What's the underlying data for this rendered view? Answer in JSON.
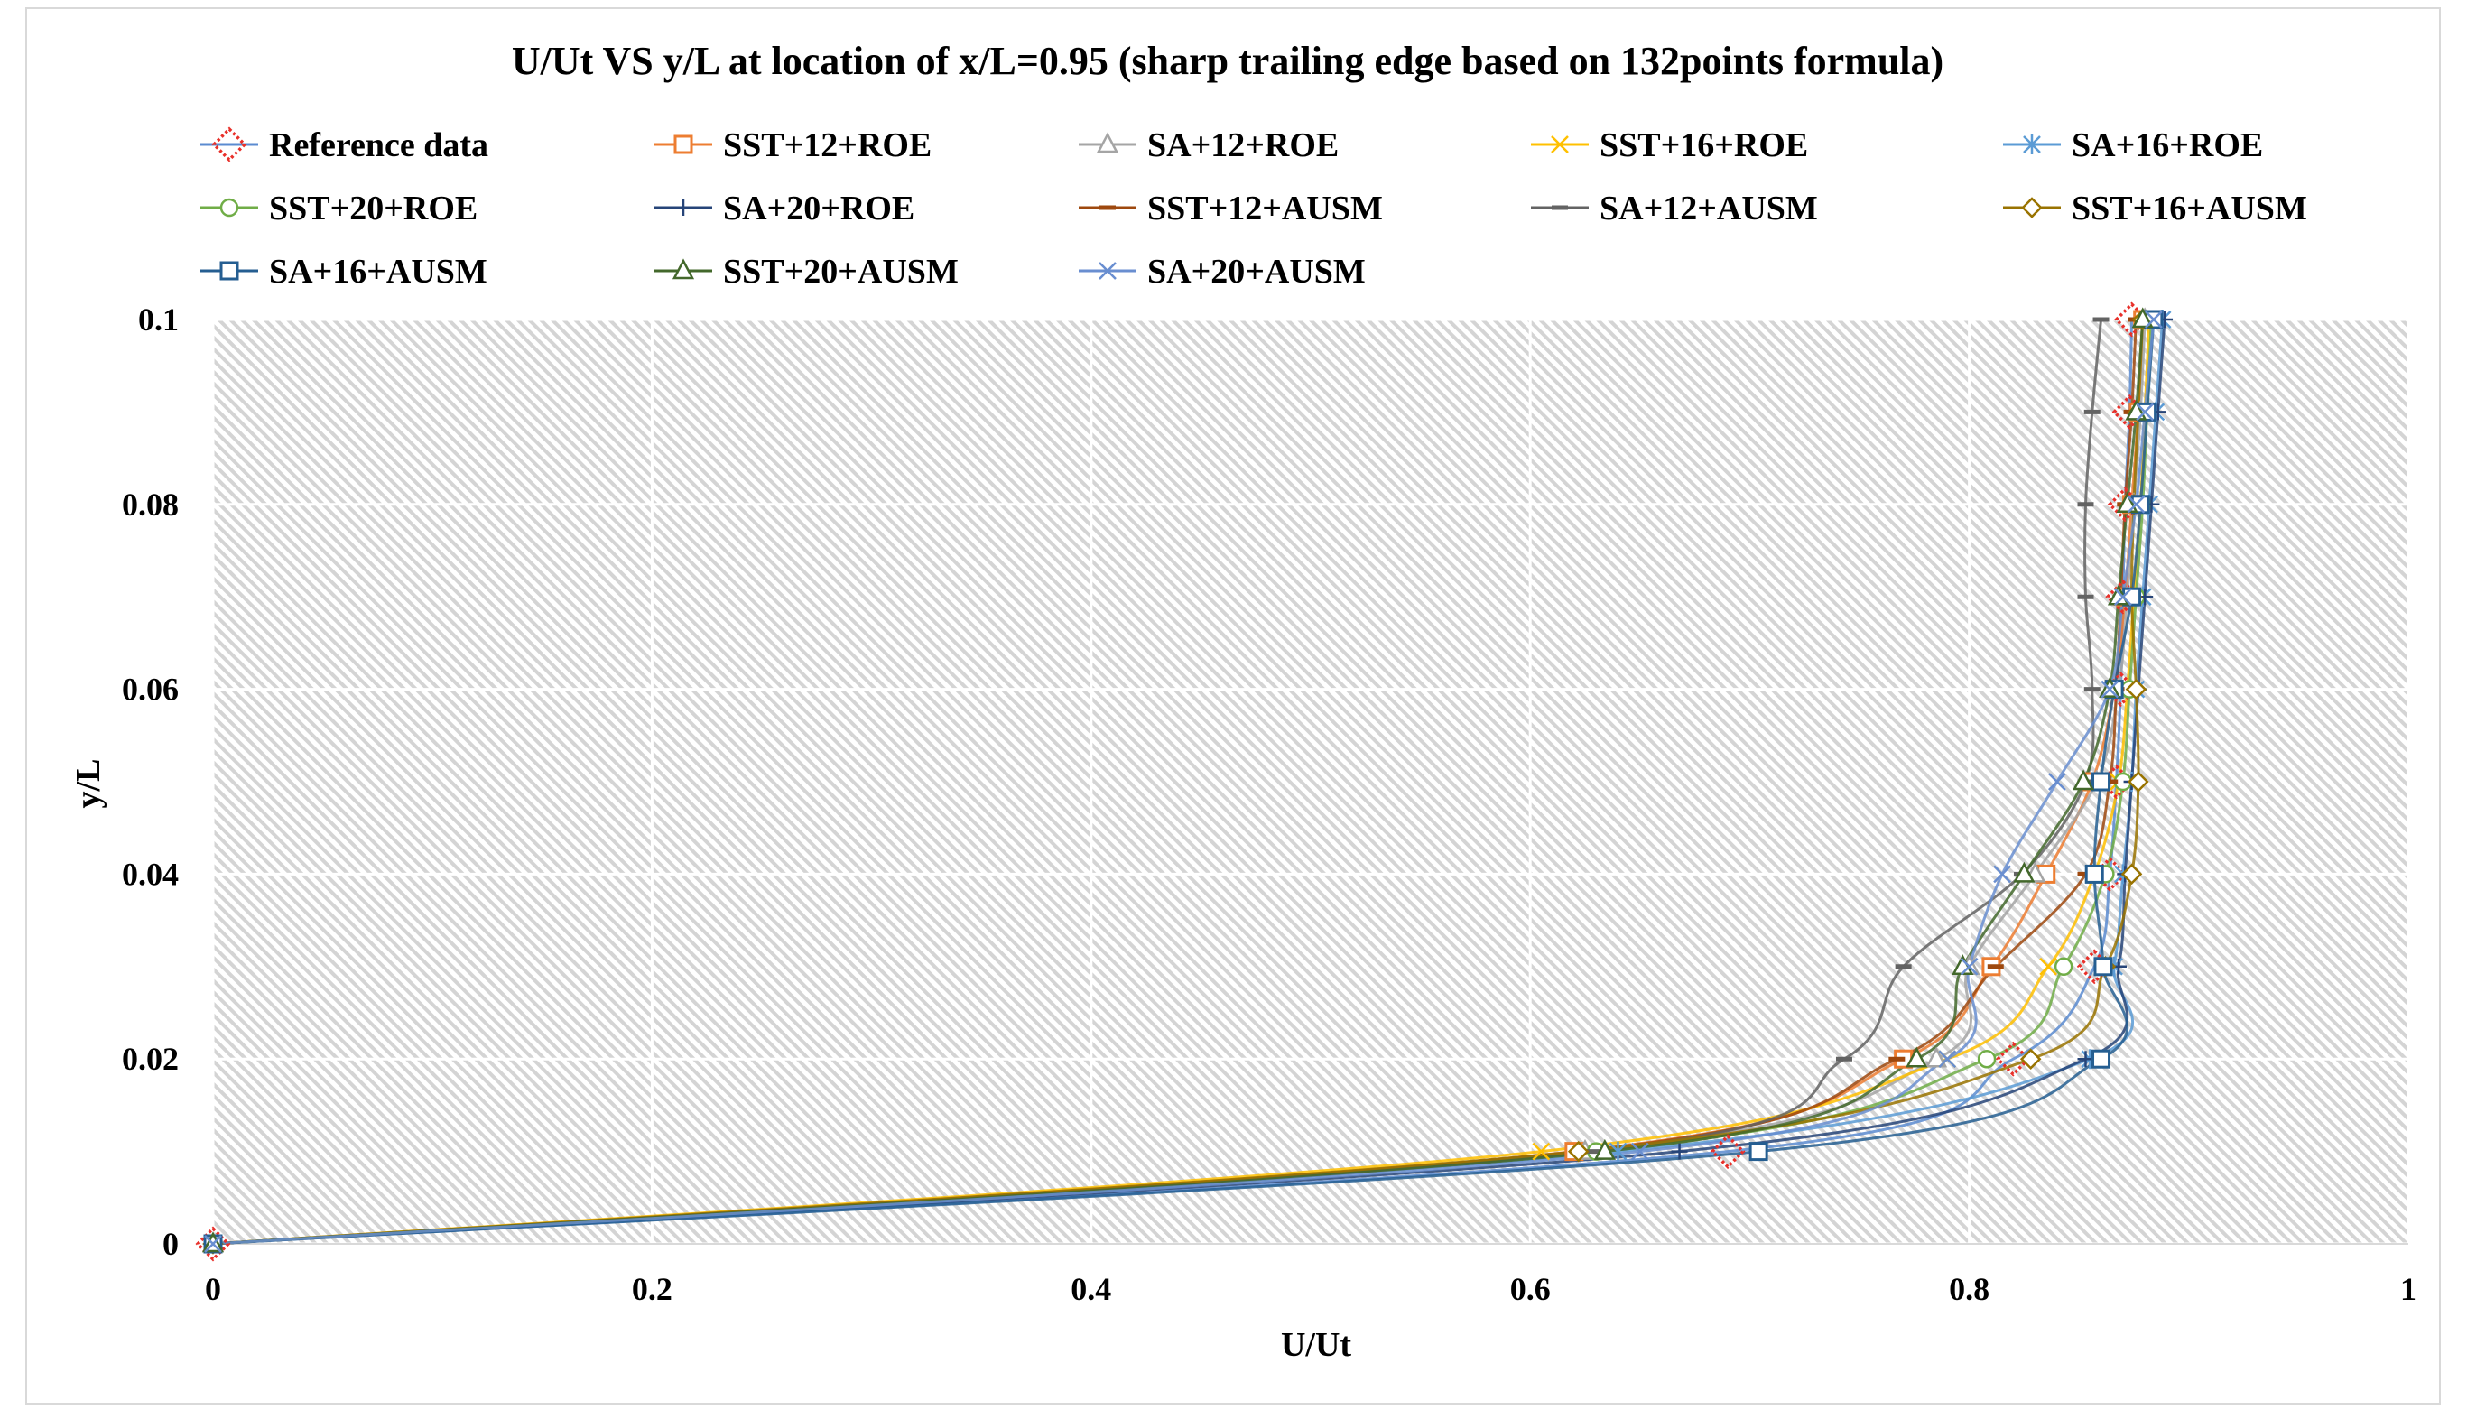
{
  "chart_data": {
    "type": "line",
    "title": "U/Ut VS y/L at location of x/L=0.95 (sharp trailing edge based on 132points formula)",
    "xlabel": "U/Ut",
    "ylabel": "y/L",
    "xlim": [
      0,
      1
    ],
    "ylim": [
      0,
      0.1
    ],
    "x_ticks": [
      "0",
      "0.2",
      "0.4",
      "0.6",
      "0.8",
      "1"
    ],
    "y_ticks": [
      "0",
      "0.02",
      "0.04",
      "0.06",
      "0.08",
      "0.1"
    ],
    "grid": true,
    "legend_position": "top",
    "y": [
      0,
      0.01,
      0.02,
      0.03,
      0.04,
      0.05,
      0.06,
      0.07,
      0.08,
      0.09,
      0.1
    ],
    "series": [
      {
        "name": "Reference data",
        "color": "#e8302a",
        "line_color": "#5b8bd0",
        "marker": "diamond-dotted",
        "x": [
          0,
          0.69,
          0.82,
          0.857,
          0.864,
          0.867,
          0.869,
          0.87,
          0.871,
          0.873,
          0.874
        ]
      },
      {
        "name": "SST+12+ROE",
        "color": "#ed7d31",
        "marker": "square",
        "x": [
          0,
          0.62,
          0.77,
          0.81,
          0.835,
          0.856,
          0.866,
          0.871,
          0.874,
          0.877,
          0.879
        ]
      },
      {
        "name": "SA+12+ROE",
        "color": "#a5a5a5",
        "marker": "triangle",
        "x": [
          0,
          0.625,
          0.785,
          0.8,
          0.83,
          0.858,
          0.868,
          0.872,
          0.875,
          0.878,
          0.88
        ]
      },
      {
        "name": "SST+16+ROE",
        "color": "#ffc000",
        "marker": "x",
        "x": [
          0,
          0.605,
          0.79,
          0.836,
          0.857,
          0.868,
          0.872,
          0.875,
          0.878,
          0.88,
          0.882
        ]
      },
      {
        "name": "SA+16+ROE",
        "color": "#5b9bd5",
        "marker": "asterisk",
        "x": [
          0,
          0.64,
          0.855,
          0.866,
          0.87,
          0.874,
          0.876,
          0.879,
          0.882,
          0.885,
          0.888
        ]
      },
      {
        "name": "SST+20+ROE",
        "color": "#70ad47",
        "marker": "circle",
        "x": [
          0,
          0.63,
          0.808,
          0.843,
          0.862,
          0.87,
          0.873,
          0.876,
          0.879,
          0.881,
          0.883
        ]
      },
      {
        "name": "SA+20+ROE",
        "color": "#264478",
        "marker": "plus",
        "x": [
          0,
          0.668,
          0.853,
          0.868,
          0.871,
          0.874,
          0.877,
          0.88,
          0.883,
          0.886,
          0.889
        ]
      },
      {
        "name": "SST+12+AUSM",
        "color": "#9e480e",
        "marker": "dash",
        "x": [
          0,
          0.622,
          0.767,
          0.812,
          0.853,
          0.864,
          0.867,
          0.869,
          0.871,
          0.874,
          0.876
        ]
      },
      {
        "name": "SA+12+AUSM",
        "color": "#636363",
        "marker": "dash",
        "x": [
          0,
          0.628,
          0.743,
          0.77,
          0.824,
          0.853,
          0.856,
          0.853,
          0.853,
          0.856,
          0.86
        ]
      },
      {
        "name": "SST+16+AUSM",
        "color": "#997300",
        "marker": "diamond",
        "x": [
          0,
          0.622,
          0.828,
          0.862,
          0.874,
          0.877,
          0.876,
          0.874,
          0.875,
          0.877,
          0.879
        ]
      },
      {
        "name": "SA+16+AUSM",
        "color": "#255e91",
        "marker": "square",
        "x": [
          0,
          0.704,
          0.86,
          0.861,
          0.857,
          0.86,
          0.866,
          0.874,
          0.878,
          0.881,
          0.884
        ]
      },
      {
        "name": "SST+20+AUSM",
        "color": "#43682b",
        "marker": "triangle",
        "x": [
          0,
          0.634,
          0.776,
          0.797,
          0.825,
          0.852,
          0.864,
          0.868,
          0.872,
          0.876,
          0.879
        ]
      },
      {
        "name": "SA+20+AUSM",
        "color": "#698ed0",
        "marker": "x",
        "x": [
          0,
          0.65,
          0.79,
          0.8,
          0.815,
          0.84,
          0.864,
          0.87,
          0.876,
          0.88,
          0.884
        ]
      }
    ]
  }
}
